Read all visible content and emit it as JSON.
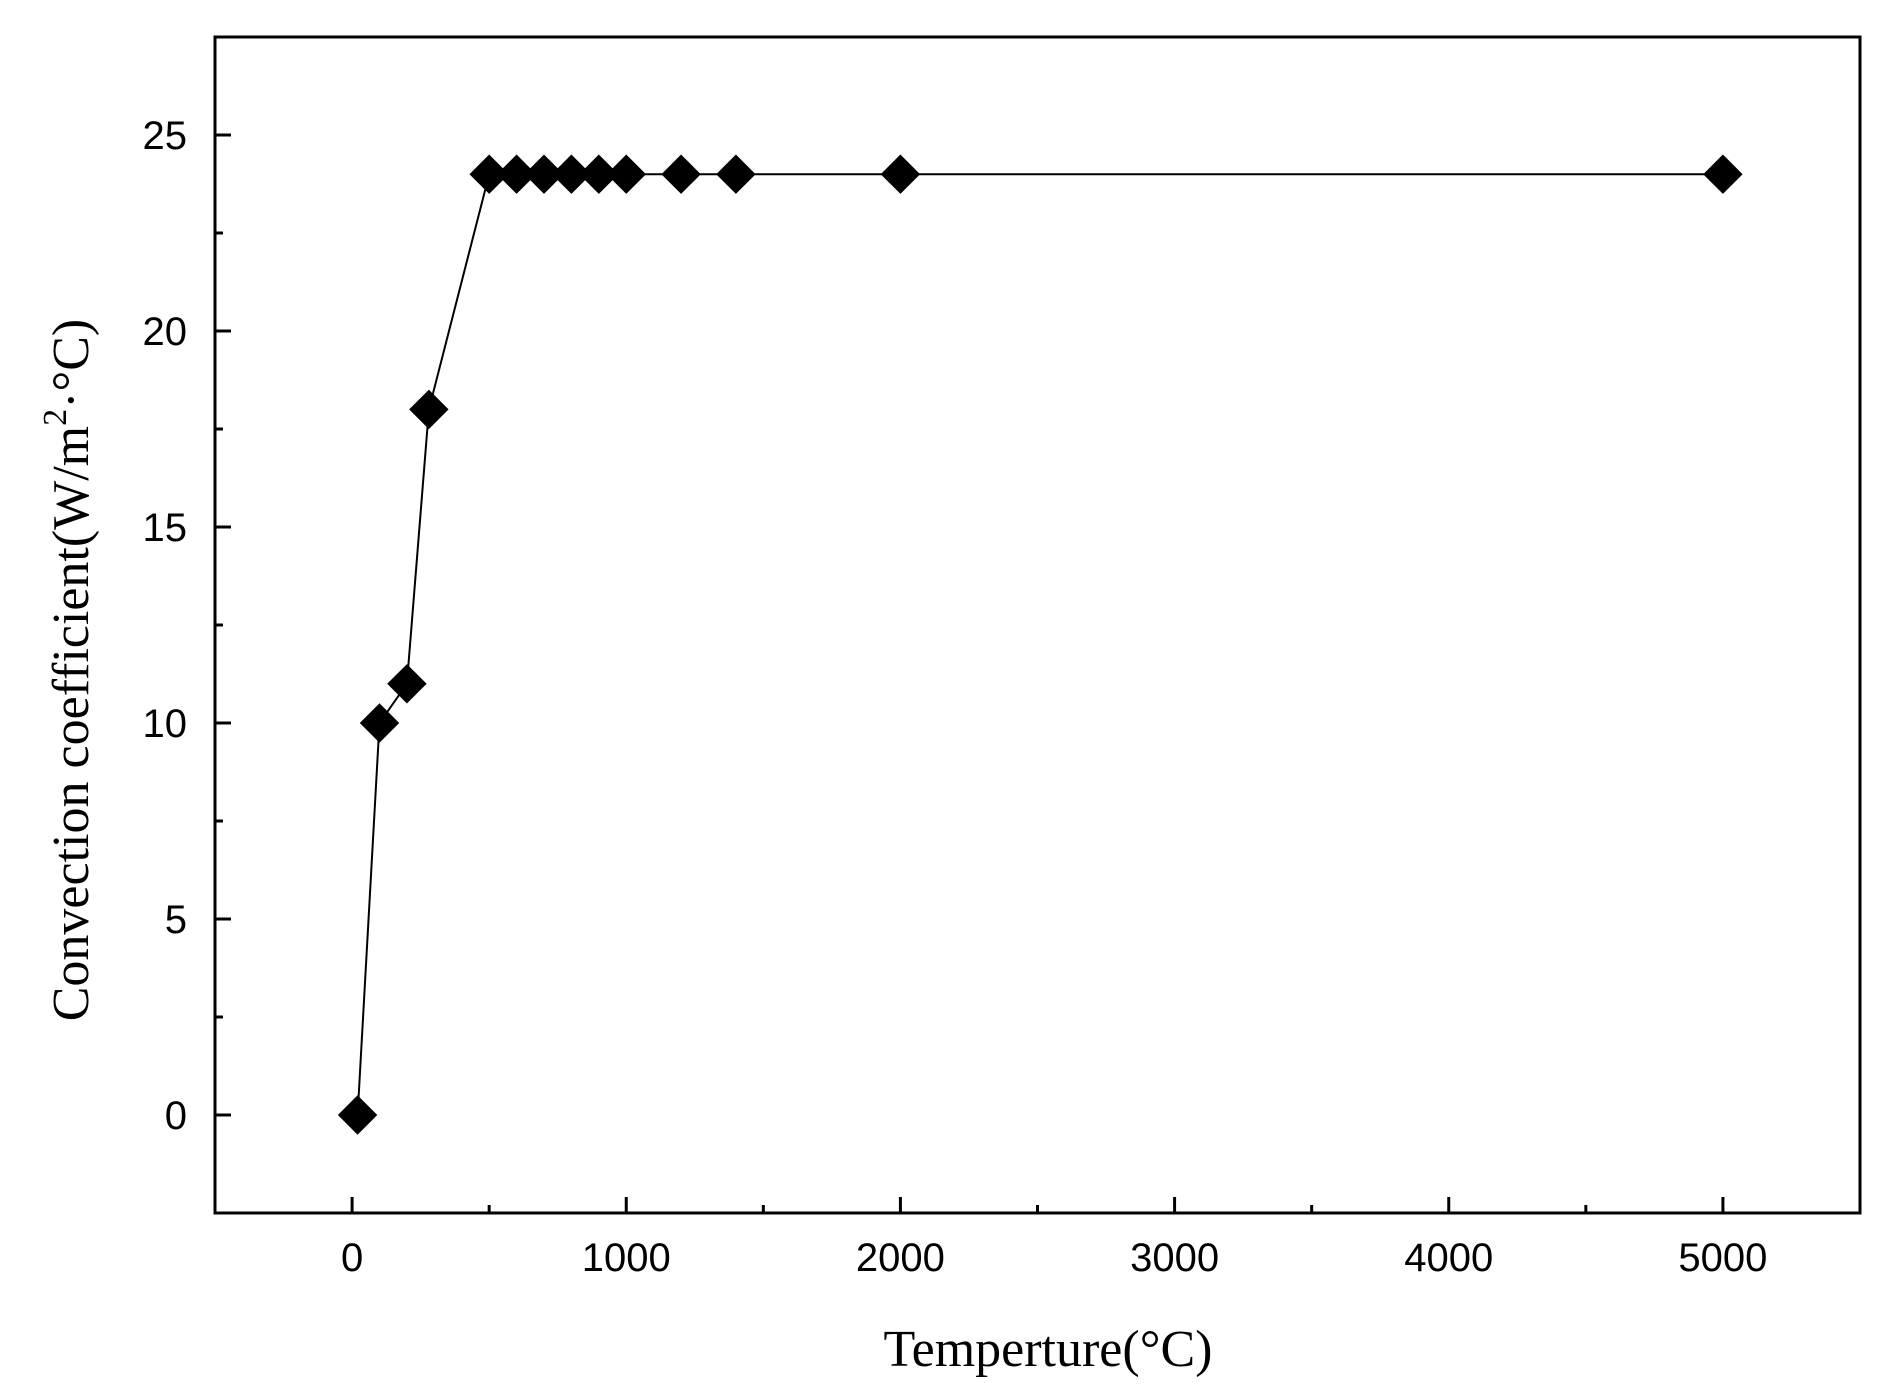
{
  "chart_data": {
    "type": "line",
    "title": "",
    "xlabel": "Temperture(°C)",
    "ylabel": {
      "prefix": "Convection coefficient(W/m",
      "superscript": "2",
      "suffix": "·°C)"
    },
    "xlim": [
      -500,
      5500
    ],
    "ylim": [
      -2.5,
      27.5
    ],
    "x_ticks": [
      0,
      1000,
      2000,
      3000,
      4000,
      5000
    ],
    "x_tick_labels": [
      "0",
      "1000",
      "2000",
      "3000",
      "4000",
      "5000"
    ],
    "x_minor_ticks": [
      -500,
      500,
      1500,
      2500,
      3500,
      4500,
      5500
    ],
    "y_ticks": [
      0,
      5,
      10,
      15,
      20,
      25
    ],
    "y_tick_labels": [
      "0",
      "5",
      "10",
      "15",
      "20",
      "25"
    ],
    "y_minor_ticks": [
      -2.5,
      2.5,
      7.5,
      12.5,
      17.5,
      22.5,
      27.5
    ],
    "grid": false,
    "legend": "none",
    "marker": "diamond",
    "color": "#000000",
    "series": [
      {
        "x": [
          20,
          100,
          200,
          280,
          500,
          600,
          700,
          800,
          900,
          1000,
          1200,
          1400,
          2000,
          5000
        ],
        "y": [
          0,
          10,
          11,
          18,
          24,
          24,
          24,
          24,
          24,
          24,
          24,
          24,
          24,
          24
        ]
      }
    ]
  }
}
